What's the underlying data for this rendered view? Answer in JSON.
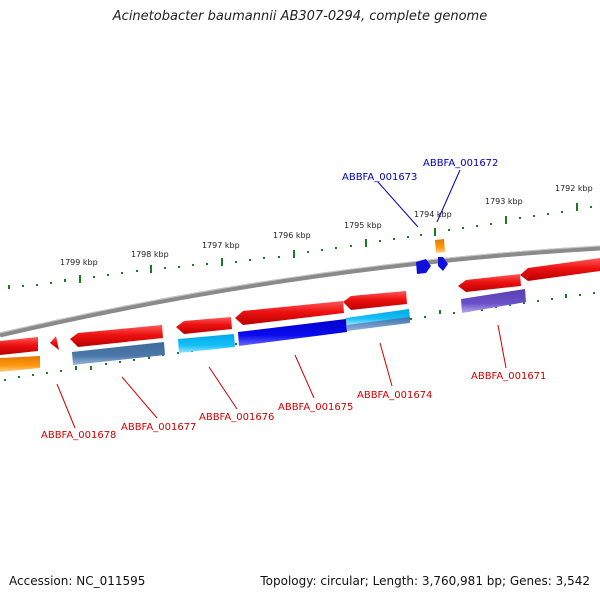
{
  "title": "Acinetobacter baumannii AB307-0294, complete genome",
  "footer": {
    "accession": "Accession: NC_011595",
    "summary": "Topology: circular; Length: 3,760,981 bp; Genes: 3,542"
  },
  "colors": {
    "backbone": "#8a8a8a",
    "tick": "#1e7a1e",
    "forward_gene": "#e8121a",
    "label_forward": "#cc0000",
    "label_reverse": "#0000bb"
  },
  "scale": {
    "ticks": [
      {
        "kbp": 1792,
        "label": "1792 kbp"
      },
      {
        "kbp": 1793,
        "label": "1793 kbp"
      },
      {
        "kbp": 1794,
        "label": "1794 kbp"
      },
      {
        "kbp": 1795,
        "label": "1795 kbp"
      },
      {
        "kbp": 1796,
        "label": "1796 kbp"
      },
      {
        "kbp": 1797,
        "label": "1797 kbp"
      },
      {
        "kbp": 1798,
        "label": "1798 kbp"
      },
      {
        "kbp": 1799,
        "label": "1799 kbp"
      }
    ]
  },
  "genes": [
    {
      "id": "ABBFA_001678",
      "label": "ABBFA_001678",
      "strand": "forward",
      "color": "#e8121a"
    },
    {
      "id": "ABBFA_001677",
      "label": "ABBFA_001677",
      "strand": "forward",
      "color": "#e8121a"
    },
    {
      "id": "ABBFA_001676",
      "label": "ABBFA_001676",
      "strand": "forward",
      "color": "#e8121a"
    },
    {
      "id": "ABBFA_001675",
      "label": "ABBFA_001675",
      "strand": "forward",
      "color": "#e8121a"
    },
    {
      "id": "ABBFA_001674",
      "label": "ABBFA_001674",
      "strand": "forward",
      "color": "#e8121a"
    },
    {
      "id": "ABBFA_001673",
      "label": "ABBFA_001673",
      "strand": "reverse",
      "color": "#1010dd"
    },
    {
      "id": "ABBFA_001672",
      "label": "ABBFA_001672",
      "strand": "reverse",
      "color": "#1010dd"
    },
    {
      "id": "ABBFA_001671",
      "label": "ABBFA_001671",
      "strand": "forward",
      "color": "#e8121a"
    }
  ]
}
